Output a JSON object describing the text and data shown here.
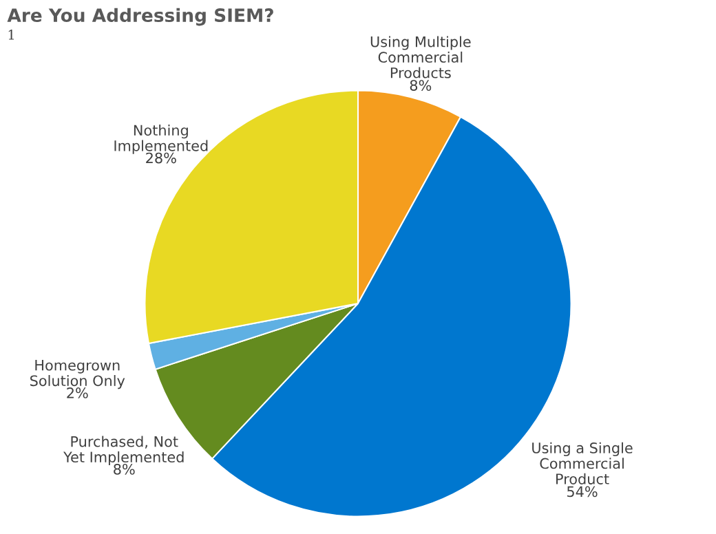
{
  "chart_data": {
    "type": "pie",
    "title": "Are You Addressing SIEM?",
    "annotations": [
      "1"
    ],
    "categories": [
      "Using Multiple Commercial Products",
      "Using a Single Commercial Product",
      "Purchased, Not Yet Implemented",
      "Homegrown Solution Only",
      "Nothing Implemented"
    ],
    "values": [
      8,
      54,
      8,
      2,
      28
    ],
    "value_labels": [
      "8%",
      "54%",
      "8%",
      "2%",
      "28%"
    ],
    "colors": [
      "#f59d1e",
      "#0077cf",
      "#648b1f",
      "#5fb0e3",
      "#e8d923"
    ],
    "legend": false
  }
}
